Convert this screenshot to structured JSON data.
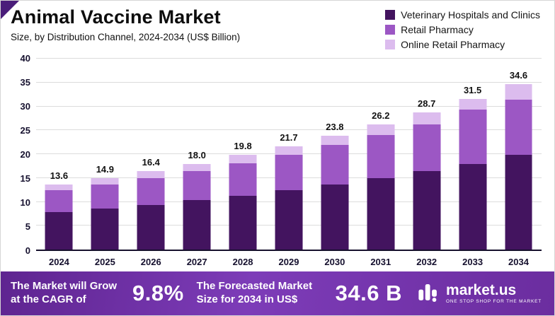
{
  "header": {
    "title": "Animal Vaccine Market",
    "subtitle": "Size, by Distribution Channel, 2024-2034 (US$ Billion)"
  },
  "legend": [
    {
      "label": "Veterinary Hospitals and Clinics",
      "color": "#43145f"
    },
    {
      "label": "Retail Pharmacy",
      "color": "#9c57c4"
    },
    {
      "label": "Online Retail Pharmacy",
      "color": "#dcbcee"
    }
  ],
  "chart_data": {
    "type": "bar",
    "stacked": true,
    "title": "Animal Vaccine Market",
    "subtitle": "Size, by Distribution Channel, 2024-2034 (US$ Billion)",
    "categories": [
      "2024",
      "2025",
      "2026",
      "2027",
      "2028",
      "2029",
      "2030",
      "2031",
      "2032",
      "2033",
      "2034"
    ],
    "series": [
      {
        "name": "Veterinary Hospitals and Clinics",
        "color": "#43145f",
        "values": [
          7.9,
          8.6,
          9.4,
          10.3,
          11.3,
          12.4,
          13.7,
          15.0,
          16.5,
          18.0,
          19.9
        ]
      },
      {
        "name": "Retail Pharmacy",
        "color": "#9c57c4",
        "values": [
          4.6,
          5.1,
          5.6,
          6.2,
          6.8,
          7.5,
          8.2,
          9.0,
          9.8,
          11.3,
          11.5
        ]
      },
      {
        "name": "Online Retail Pharmacy",
        "color": "#dcbcee",
        "values": [
          1.1,
          1.2,
          1.4,
          1.5,
          1.7,
          1.8,
          1.9,
          2.2,
          2.4,
          2.2,
          3.2
        ]
      }
    ],
    "totals": [
      13.6,
      14.9,
      16.4,
      18.0,
      19.8,
      21.7,
      23.8,
      26.2,
      28.7,
      31.5,
      34.6
    ],
    "xlabel": "",
    "ylabel": "",
    "ylim": [
      0,
      40
    ],
    "yticks": [
      0,
      5,
      10,
      15,
      20,
      25,
      30,
      35,
      40
    ],
    "grid": true,
    "legend_position": "top-right"
  },
  "footer": {
    "left_text": "The Market will Grow at the CAGR of",
    "cagr": "9.8%",
    "mid_text": "The Forecasted Market Size for 2034 in US$",
    "forecast_size": "34.6 B",
    "brand": "market.us",
    "tagline": "ONE STOP SHOP FOR THE MARKET"
  }
}
